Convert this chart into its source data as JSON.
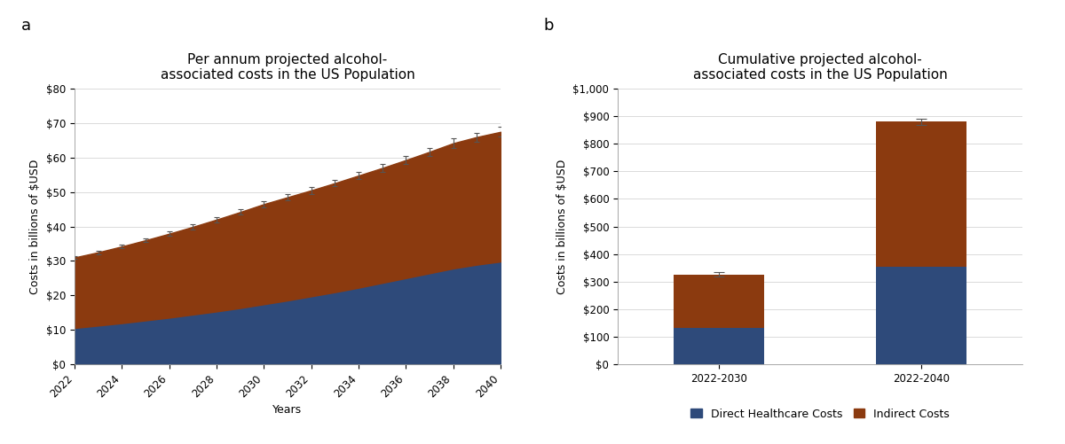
{
  "panel_a": {
    "title": "Per annum projected alcohol-\nassociated costs in the US Population",
    "xlabel": "Years",
    "ylabel": "Costs in billions of $USD",
    "years": [
      2022,
      2023,
      2024,
      2025,
      2026,
      2027,
      2028,
      2029,
      2030,
      2031,
      2032,
      2033,
      2034,
      2035,
      2036,
      2037,
      2038,
      2039,
      2040
    ],
    "direct": [
      10.5,
      11.2,
      11.9,
      12.7,
      13.5,
      14.4,
      15.3,
      16.3,
      17.4,
      18.5,
      19.7,
      20.9,
      22.2,
      23.6,
      25.0,
      26.4,
      27.8,
      28.9,
      29.8
    ],
    "total": [
      31.0,
      32.5,
      34.2,
      36.0,
      37.9,
      39.9,
      42.0,
      44.2,
      46.5,
      48.5,
      50.5,
      52.6,
      54.8,
      57.0,
      59.3,
      61.7,
      64.2,
      66.0,
      67.5
    ],
    "total_err": [
      0.5,
      0.5,
      0.6,
      0.6,
      0.7,
      0.7,
      0.8,
      0.8,
      0.9,
      0.9,
      1.0,
      1.0,
      1.1,
      1.1,
      1.2,
      1.2,
      1.3,
      1.3,
      1.4
    ],
    "direct_color": "#2E4A7A",
    "indirect_color": "#8B3A0F",
    "ylim": [
      0,
      80
    ],
    "yticks": [
      0,
      10,
      20,
      30,
      40,
      50,
      60,
      70,
      80
    ],
    "ytick_labels": [
      "$0",
      "$10",
      "$20",
      "$30",
      "$40",
      "$50",
      "$60",
      "$70",
      "$80"
    ]
  },
  "panel_b": {
    "title": "Cumulative projected alcohol-\nassociated costs in the US Population",
    "xlabel": "",
    "ylabel": "Costs in billions of $USD",
    "categories": [
      "2022-2030",
      "2022-2040"
    ],
    "direct": [
      130,
      355
    ],
    "indirect": [
      195,
      525
    ],
    "total_err": [
      8,
      12
    ],
    "direct_color": "#2E4A7A",
    "indirect_color": "#8B3A0F",
    "ylim": [
      0,
      1000
    ],
    "yticks": [
      0,
      100,
      200,
      300,
      400,
      500,
      600,
      700,
      800,
      900,
      1000
    ],
    "ytick_labels": [
      "$0",
      "$100",
      "$200",
      "$300",
      "$400",
      "$500",
      "$600",
      "$700",
      "$800",
      "$900",
      "$1,000"
    ]
  },
  "legend": {
    "direct_label": "Direct Healthcare Costs",
    "indirect_label": "Indirect Costs"
  },
  "bg_color": "#FFFFFF",
  "panel_label_fontsize": 13,
  "title_fontsize": 11,
  "axis_label_fontsize": 9,
  "tick_fontsize": 8.5
}
